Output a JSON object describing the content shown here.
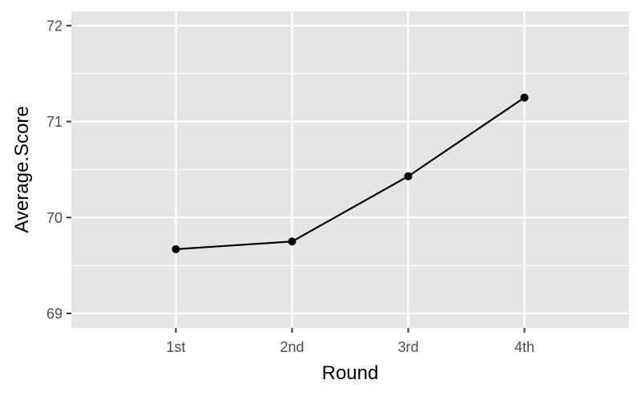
{
  "chart_data": {
    "type": "line",
    "title": "",
    "xlabel": "Round",
    "ylabel": "Average.Score",
    "categories": [
      "1st",
      "2nd",
      "3rd",
      "4th"
    ],
    "series": [
      {
        "values": [
          69.67,
          69.75,
          70.43,
          71.25
        ]
      }
    ],
    "ylim": [
      68.85,
      72.15
    ],
    "yticks": [
      69,
      70,
      71,
      72
    ],
    "grid": true,
    "legend": "none",
    "colors": {
      "panel": "#e5e5e5",
      "grid": "#ffffff",
      "line": "#000000",
      "tick_text": "#4d4d4d",
      "tick_mark": "#333333"
    }
  }
}
